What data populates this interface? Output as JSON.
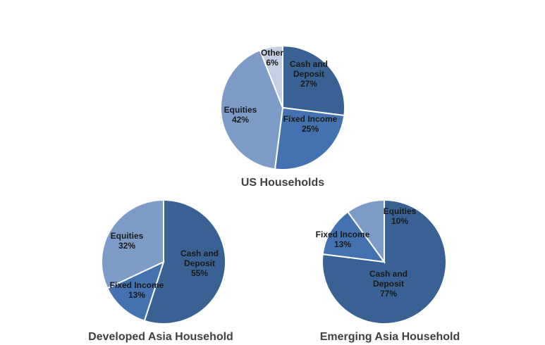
{
  "chart_data": [
    {
      "type": "pie",
      "title": "US Households",
      "slices": [
        {
          "label": [
            "Cash and",
            "Deposit"
          ],
          "value": 27,
          "pct_label": "27%",
          "color": "#3A6193"
        },
        {
          "label": [
            "Fixed Income"
          ],
          "value": 25,
          "pct_label": "25%",
          "color": "#4472B0"
        },
        {
          "label": [
            "Equities"
          ],
          "value": 42,
          "pct_label": "42%",
          "color": "#7E9BC8"
        },
        {
          "label": [
            "Other"
          ],
          "value": 6,
          "pct_label": "6%",
          "color": "#C3CFE2"
        }
      ]
    },
    {
      "type": "pie",
      "title": "Developed Asia Household",
      "slices": [
        {
          "label": [
            "Cash and",
            "Deposit"
          ],
          "value": 55,
          "pct_label": "55%",
          "color": "#3A6193"
        },
        {
          "label": [
            "Fixed Income"
          ],
          "value": 13,
          "pct_label": "13%",
          "color": "#4472B0"
        },
        {
          "label": [
            "Equities"
          ],
          "value": 32,
          "pct_label": "32%",
          "color": "#7E9BC8"
        }
      ]
    },
    {
      "type": "pie",
      "title": "Emerging Asia Household",
      "slices": [
        {
          "label": [
            "Cash and",
            "Deposit"
          ],
          "value": 77,
          "pct_label": "77%",
          "color": "#3A6193"
        },
        {
          "label": [
            "Fixed Income"
          ],
          "value": 13,
          "pct_label": "13%",
          "color": "#4472B0"
        },
        {
          "label": [
            "Equities"
          ],
          "value": 10,
          "pct_label": "10%",
          "color": "#7E9BC8"
        }
      ]
    }
  ]
}
